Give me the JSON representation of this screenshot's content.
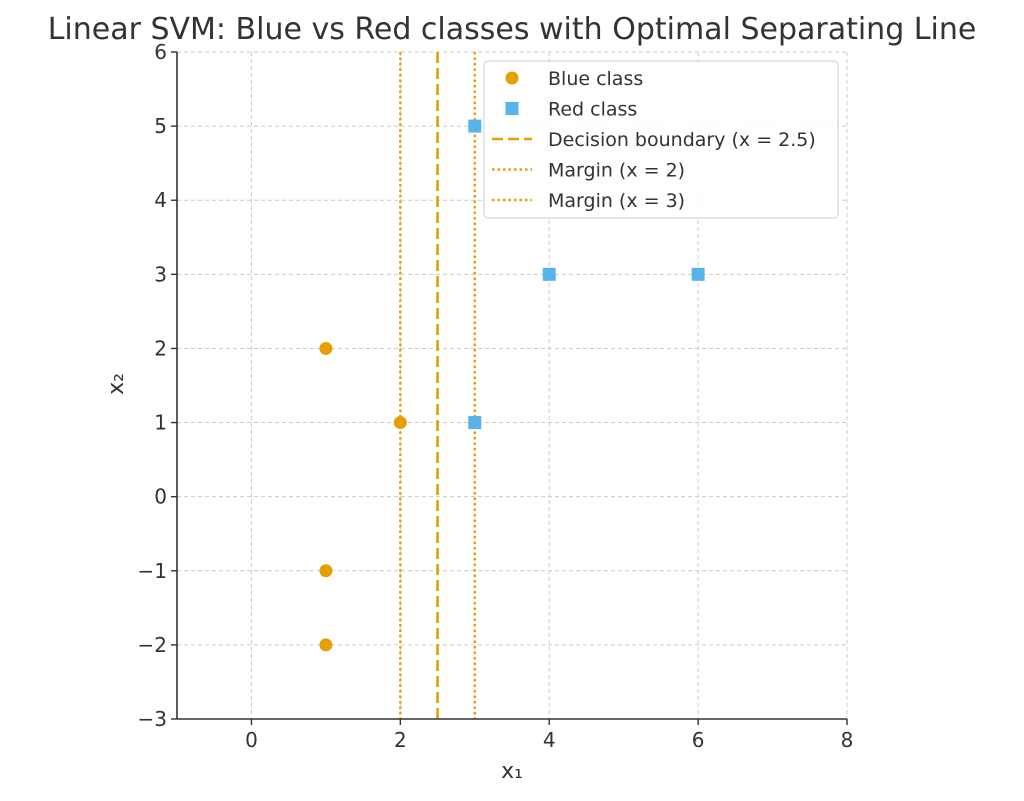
{
  "chart_data": {
    "type": "scatter",
    "title": "Linear SVM: Blue vs Red classes with Optimal Separating Line",
    "xlabel": "x₁",
    "ylabel": "x₂",
    "xlim": [
      -1,
      8
    ],
    "ylim": [
      -3,
      6
    ],
    "xticks": [
      0,
      2,
      4,
      6,
      8
    ],
    "xtick_labels": [
      "0",
      "2",
      "4",
      "6",
      "8"
    ],
    "yticks": [
      -3,
      -2,
      -1,
      0,
      1,
      2,
      3,
      4,
      5,
      6
    ],
    "ytick_labels": [
      "−3",
      "−2",
      "−1",
      "0",
      "1",
      "2",
      "3",
      "4",
      "5",
      "6"
    ],
    "grid": true,
    "legend_position": "top-right",
    "series": [
      {
        "name": "Blue class",
        "marker": "circle",
        "color": "#E69F00",
        "points": [
          [
            1,
            2
          ],
          [
            2,
            1
          ],
          [
            1,
            -1
          ],
          [
            1,
            -2
          ]
        ]
      },
      {
        "name": "Red class",
        "marker": "square",
        "color": "#56B4E9",
        "points": [
          [
            3,
            5
          ],
          [
            4,
            3
          ],
          [
            6,
            3
          ],
          [
            3,
            1
          ]
        ]
      }
    ],
    "vlines": [
      {
        "name": "Decision boundary (x = 2.5)",
        "x": 2.5,
        "style": "dashed",
        "color": "#E69F00"
      },
      {
        "name": "Margin (x = 2)",
        "x": 2,
        "style": "dotted",
        "color": "#E69F00"
      },
      {
        "name": "Margin (x = 3)",
        "x": 3,
        "style": "dotted",
        "color": "#E69F00"
      }
    ]
  }
}
